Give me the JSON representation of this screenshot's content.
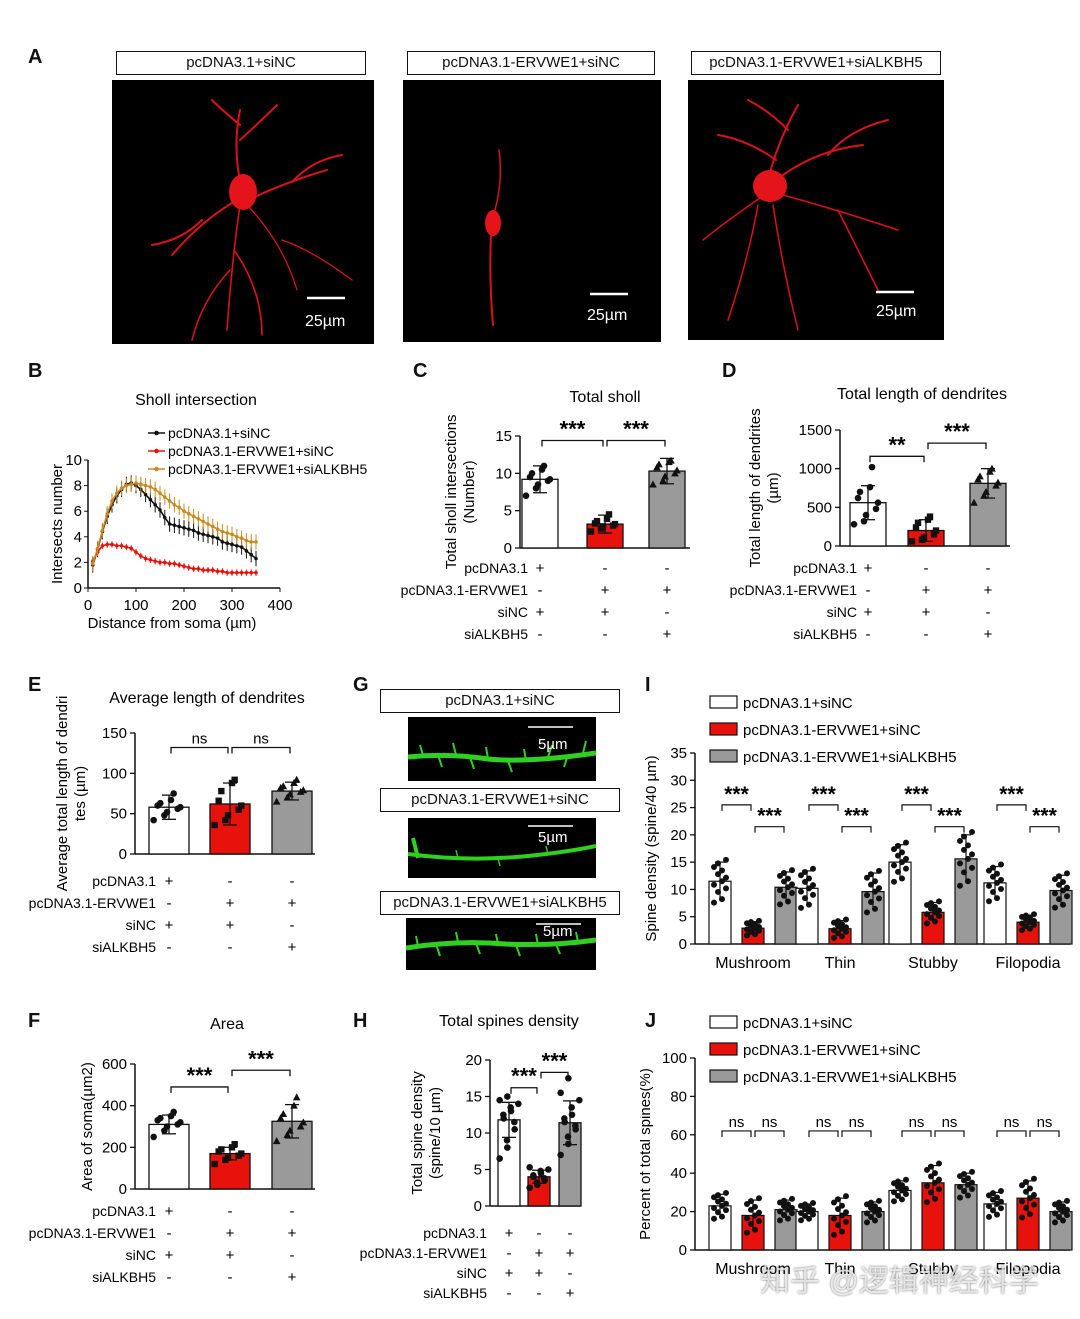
{
  "panels": {
    "A": "A",
    "B": "B",
    "C": "C",
    "D": "D",
    "E": "E",
    "F": "F",
    "G": "G",
    "H": "H",
    "I": "I",
    "J": "J"
  },
  "groups": {
    "g1": "pcDNA3.1+siNC",
    "g2": "pcDNA3.1-ERVWE1+siNC",
    "g3": "pcDNA3.1-ERVWE1+siALKBH5"
  },
  "colors": {
    "g1": "#ffffff",
    "g2": "#e8120c",
    "g3": "#9a9a9a",
    "sholl_g1": "#111111",
    "sholl_g2": "#e8120c",
    "sholl_g3": "#c98a23",
    "neuron": "#e3141a",
    "spine": "#2fd01f"
  },
  "scalebars": {
    "neuron": "25µm",
    "spine": "5µm"
  },
  "conditions": {
    "names": [
      "pcDNA3.1",
      "pcDNA3.1-ERVWE1",
      "siNC",
      "siALKBH5"
    ],
    "values": [
      [
        "+",
        "-",
        "-"
      ],
      [
        "-",
        "+",
        "+"
      ],
      [
        "+",
        "+",
        "-"
      ],
      [
        "-",
        "-",
        "+"
      ]
    ]
  },
  "watermark": "知乎 @逻辑神经科学",
  "chart_data": [
    {
      "id": "B",
      "type": "line",
      "title": "Sholl intersection",
      "xlabel": "Distance from soma (µm)",
      "ylabel": "Intersects number",
      "xlim": [
        0,
        400
      ],
      "ylim": [
        0,
        10
      ],
      "xticks": [
        0,
        100,
        200,
        300,
        400
      ],
      "yticks": [
        0,
        2,
        4,
        6,
        8,
        10
      ],
      "x": [
        10,
        20,
        30,
        40,
        50,
        60,
        70,
        80,
        90,
        100,
        110,
        120,
        130,
        140,
        150,
        160,
        170,
        180,
        190,
        200,
        210,
        220,
        230,
        240,
        250,
        260,
        270,
        280,
        290,
        300,
        310,
        320,
        330,
        340,
        350
      ],
      "series": [
        {
          "name": "pcDNA3.1+siNC",
          "values": [
            1.8,
            3.0,
            4.4,
            5.6,
            6.5,
            7.2,
            7.7,
            8.1,
            8.2,
            8.0,
            7.7,
            7.3,
            6.9,
            6.5,
            6.1,
            5.5,
            5.0,
            4.9,
            4.8,
            4.7,
            4.6,
            4.5,
            4.3,
            4.2,
            4.1,
            4.0,
            3.9,
            3.6,
            3.5,
            3.4,
            3.3,
            3.2,
            2.9,
            2.6,
            2.3
          ]
        },
        {
          "name": "pcDNA3.1-ERVWE1+siNC",
          "values": [
            2.1,
            2.8,
            3.3,
            3.4,
            3.4,
            3.3,
            3.3,
            3.2,
            3.1,
            2.8,
            2.5,
            2.3,
            2.2,
            2.1,
            2.0,
            2.0,
            1.9,
            1.9,
            1.8,
            1.7,
            1.6,
            1.5,
            1.5,
            1.4,
            1.4,
            1.4,
            1.3,
            1.3,
            1.2,
            1.2,
            1.2,
            1.2,
            1.2,
            1.2,
            1.2
          ]
        },
        {
          "name": "pcDNA3.1-ERVWE1+siALKBH5",
          "values": [
            1.9,
            3.1,
            4.5,
            5.8,
            6.8,
            7.4,
            7.8,
            8.0,
            8.1,
            8.2,
            8.1,
            8.0,
            7.9,
            7.7,
            7.4,
            7.1,
            6.8,
            6.5,
            6.3,
            6.0,
            5.8,
            5.6,
            5.4,
            5.2,
            5.0,
            4.8,
            4.6,
            4.4,
            4.3,
            4.2,
            4.0,
            3.9,
            3.7,
            3.6,
            3.6
          ]
        }
      ]
    },
    {
      "id": "C",
      "type": "bar",
      "title": "Total sholl",
      "ylabel": "Total sholl intersections (Number)",
      "ylim": [
        0,
        15
      ],
      "yticks": [
        0,
        5,
        10,
        15
      ],
      "values": [
        9.2,
        3.2,
        10.3
      ],
      "errors": [
        1.8,
        1.2,
        1.7
      ],
      "points": [
        [
          7.0,
          8.0,
          8.5,
          9.0,
          9.2,
          9.5,
          10.0,
          10.5,
          11.0
        ],
        [
          2.2,
          2.6,
          2.9,
          3.0,
          3.2,
          3.3,
          3.6,
          3.9,
          4.5
        ],
        [
          8.5,
          9.0,
          9.6,
          10.0,
          10.4,
          10.8,
          11.2,
          11.5,
          11.7
        ]
      ],
      "markers": [
        "circle",
        "square",
        "triangle"
      ],
      "sig": [
        {
          "a": 0,
          "b": 1,
          "label": "***",
          "y": 14.4
        },
        {
          "a": 1,
          "b": 2,
          "label": "***",
          "y": 14.4
        }
      ]
    },
    {
      "id": "D",
      "type": "bar",
      "title": "Total length of dendrites",
      "ylabel": "Total length of dendrites (µm)",
      "ylim": [
        0,
        1500
      ],
      "yticks": [
        0,
        500,
        1000,
        1500
      ],
      "values": [
        560,
        200,
        810
      ],
      "errors": [
        220,
        140,
        190
      ],
      "points": [
        [
          280,
          320,
          400,
          480,
          560,
          620,
          700,
          760,
          1020
        ],
        [
          60,
          80,
          110,
          150,
          200,
          240,
          300,
          340,
          380
        ],
        [
          560,
          650,
          700,
          780,
          820,
          860,
          900,
          960,
          1000
        ]
      ],
      "markers": [
        "circle",
        "square",
        "triangle"
      ],
      "sig": [
        {
          "a": 0,
          "b": 1,
          "label": "**",
          "y": 1160
        },
        {
          "a": 1,
          "b": 2,
          "label": "***",
          "y": 1330
        }
      ]
    },
    {
      "id": "E",
      "type": "bar",
      "title": "Average length of dendrites",
      "ylabel": "Average total length of dendrites (µm)",
      "ylim": [
        0,
        150
      ],
      "yticks": [
        0,
        50,
        100,
        150
      ],
      "values": [
        58,
        62,
        78
      ],
      "errors": [
        15,
        26,
        11
      ],
      "points": [
        [
          42,
          48,
          52,
          56,
          58,
          60,
          63,
          67,
          75
        ],
        [
          36,
          42,
          48,
          55,
          60,
          66,
          78,
          88,
          92
        ],
        [
          65,
          70,
          74,
          77,
          79,
          82,
          84,
          88,
          92
        ]
      ],
      "markers": [
        "circle",
        "square",
        "triangle"
      ],
      "sig": [
        {
          "a": 0,
          "b": 1,
          "label": "ns",
          "y": 132
        },
        {
          "a": 1,
          "b": 2,
          "label": "ns",
          "y": 132
        }
      ]
    },
    {
      "id": "F",
      "type": "bar",
      "title": "Area",
      "ylabel": "Area of soma(µm2)",
      "ylim": [
        0,
        600
      ],
      "yticks": [
        0,
        200,
        400,
        600
      ],
      "values": [
        310,
        170,
        325
      ],
      "errors": [
        45,
        30,
        80
      ],
      "points": [
        [
          250,
          280,
          300,
          310,
          320,
          330,
          340,
          350,
          370
        ],
        [
          120,
          140,
          150,
          160,
          170,
          180,
          190,
          200,
          215
        ],
        [
          230,
          260,
          280,
          300,
          320,
          340,
          360,
          400,
          440
        ]
      ],
      "markers": [
        "circle",
        "square",
        "triangle"
      ],
      "sig": [
        {
          "a": 0,
          "b": 1,
          "label": "***",
          "y": 490
        },
        {
          "a": 1,
          "b": 2,
          "label": "***",
          "y": 570
        }
      ]
    },
    {
      "id": "H",
      "type": "bar",
      "title": "Total spines density",
      "ylabel": "Total spine density (spine/10 µm)",
      "ylim": [
        0,
        20
      ],
      "yticks": [
        0,
        5,
        10,
        15,
        20
      ],
      "values": [
        11.8,
        4.0,
        11.4
      ],
      "errors": [
        2.4,
        0.9,
        3.0
      ],
      "points": [
        [
          6.5,
          8.0,
          9.0,
          10.5,
          11.5,
          12.0,
          12.5,
          13.0,
          13.5,
          14.0,
          14.5,
          15.0
        ],
        [
          2.5,
          2.9,
          3.2,
          3.5,
          3.8,
          4.0,
          4.2,
          4.5,
          4.8,
          5.0,
          5.3
        ],
        [
          7.0,
          8.5,
          9.5,
          10.5,
          11.0,
          11.5,
          12.0,
          12.5,
          13.5,
          14.5,
          15.5,
          17.5
        ]
      ],
      "markers": [
        "circle",
        "circle",
        "circle"
      ],
      "sig": [
        {
          "a": 0,
          "b": 1,
          "label": "***",
          "y": 16.2
        },
        {
          "a": 1,
          "b": 2,
          "label": "***",
          "y": 18.3
        }
      ]
    },
    {
      "id": "I",
      "type": "bar",
      "ylabel": "Spine density (spine/40 µm)",
      "ylim": [
        0,
        35
      ],
      "yticks": [
        0,
        5,
        10,
        15,
        20,
        25,
        30,
        35
      ],
      "categories": [
        "Mushroom",
        "Thin",
        "Stubby",
        "Filopodia"
      ],
      "series": [
        {
          "name": "pcDNA3.1+siNC",
          "values": [
            11.5,
            10.2,
            15.0,
            11.2
          ],
          "errors": [
            3.5,
            3.2,
            3.2,
            3.0
          ]
        },
        {
          "name": "pcDNA3.1-ERVWE1+siNC",
          "values": [
            2.9,
            2.8,
            5.8,
            4.0
          ],
          "errors": [
            1.2,
            1.5,
            1.8,
            1.3
          ]
        },
        {
          "name": "pcDNA3.1-ERVWE1+siALKBH5",
          "values": [
            10.4,
            9.6,
            15.6,
            9.8
          ],
          "errors": [
            2.8,
            3.4,
            4.4,
            2.8
          ]
        }
      ],
      "sig": [
        {
          "label": "***",
          "y": 25.5
        },
        {
          "label": "***",
          "y": 21.5
        }
      ]
    },
    {
      "id": "J",
      "type": "bar",
      "ylabel": "Percent of total spines(%)",
      "ylim": [
        0,
        100
      ],
      "yticks": [
        0,
        20,
        40,
        60,
        80,
        100
      ],
      "categories": [
        "Mushroom",
        "Thin",
        "Stubby",
        "Filopodia"
      ],
      "series": [
        {
          "name": "pcDNA3.1+siNC",
          "values": [
            23,
            20,
            31,
            24
          ],
          "errors": [
            6,
            4,
            5,
            6
          ]
        },
        {
          "name": "pcDNA3.1-ERVWE1+siNC",
          "values": [
            18,
            18,
            35,
            27
          ],
          "errors": [
            8,
            9,
            9,
            9
          ]
        },
        {
          "name": "pcDNA3.1-ERVWE1+siALKBH5",
          "values": [
            21,
            20,
            34,
            20
          ],
          "errors": [
            5,
            5,
            6,
            5
          ]
        }
      ],
      "sig": [
        {
          "label": "ns",
          "y": 62
        },
        {
          "label": "ns",
          "y": 62
        }
      ]
    }
  ]
}
